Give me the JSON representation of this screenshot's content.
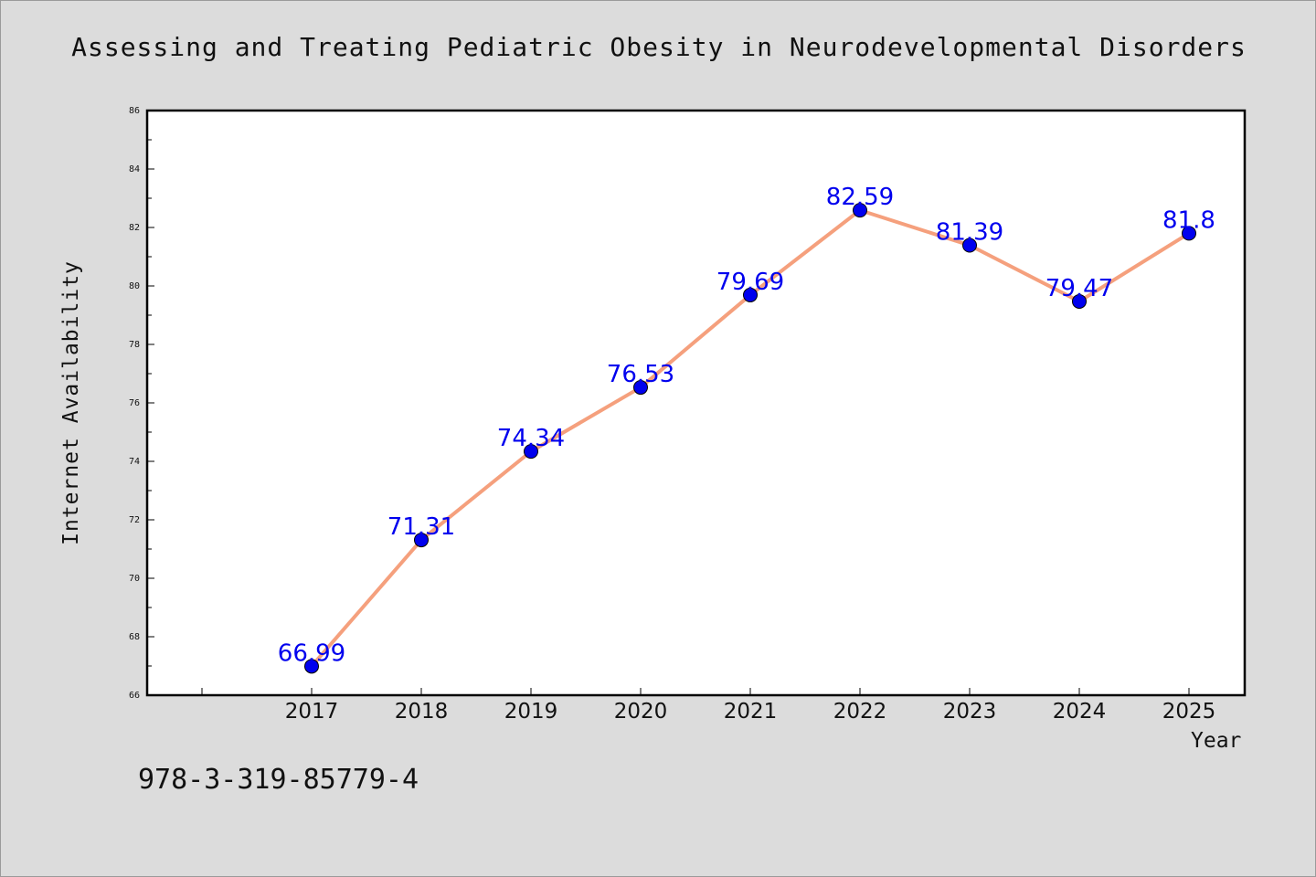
{
  "chart_data": {
    "type": "line",
    "title": "Assessing and Treating Pediatric Obesity in Neurodevelopmental Disorders",
    "xlabel": "Year",
    "ylabel": "Internet Availability",
    "x": [
      "2017",
      "2018",
      "2019",
      "2020",
      "2021",
      "2022",
      "2023",
      "2024",
      "2025"
    ],
    "series": [
      {
        "values": [
          66.99,
          71.31,
          74.34,
          76.53,
          79.69,
          82.59,
          81.39,
          79.47,
          81.8
        ],
        "line_color": "#f5a07d",
        "marker_color": "#0000ee"
      }
    ],
    "data_labels": [
      "66.99",
      "71.31",
      "74.34",
      "76.53",
      "79.69",
      "82.59",
      "81.39",
      "79.47",
      "81.8"
    ],
    "ylim": [
      66,
      86
    ],
    "yticks": [
      "66",
      "68",
      "70",
      "72",
      "74",
      "76",
      "78",
      "80",
      "82",
      "84",
      "86"
    ],
    "grid": false,
    "label_color": "#0000ee"
  },
  "footer": {
    "isbn": "978-3-319-85779-4"
  }
}
